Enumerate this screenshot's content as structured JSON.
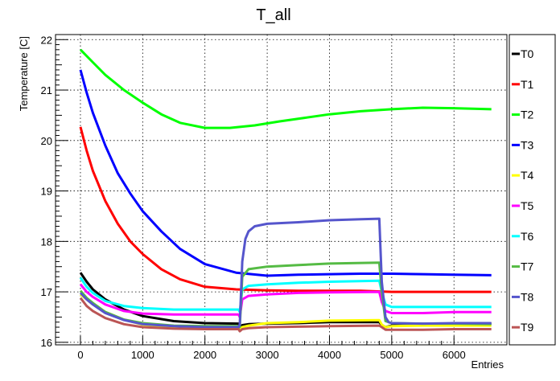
{
  "chart_data": {
    "type": "line",
    "title": "T_all",
    "xlabel": "Entries",
    "ylabel": "Temperature [C]",
    "xlim": [
      -400,
      6850
    ],
    "ylim": [
      15.95,
      22.1
    ],
    "grid": true,
    "legend_position": "right",
    "xticks": [
      0,
      1000,
      2000,
      3000,
      4000,
      5000,
      6000
    ],
    "xtick_labels": [
      "0",
      "1000",
      "2000",
      "3000",
      "4000",
      "5000",
      "6000"
    ],
    "yticks": [
      16,
      17,
      18,
      19,
      20,
      21,
      22
    ],
    "ytick_labels": [
      "16",
      "17",
      "18",
      "19",
      "20",
      "21",
      "22"
    ],
    "series": [
      {
        "name": "T0",
        "color": "#000000",
        "x": [
          0,
          100,
          200,
          400,
          700,
          1000,
          1500,
          2000,
          2540,
          2560,
          2600,
          2700,
          3000,
          3500,
          4000,
          4800,
          4840,
          4900,
          5000,
          5500,
          6000,
          6600
        ],
        "y": [
          17.38,
          17.2,
          17.05,
          16.85,
          16.65,
          16.52,
          16.42,
          16.38,
          16.37,
          16.3,
          16.34,
          16.36,
          16.37,
          16.38,
          16.4,
          16.4,
          16.34,
          16.3,
          16.33,
          16.35,
          16.36,
          16.37
        ]
      },
      {
        "name": "T1",
        "color": "#ff0000",
        "x": [
          0,
          100,
          200,
          400,
          600,
          800,
          1000,
          1300,
          1600,
          2000,
          2500,
          3000,
          3500,
          4000,
          4500,
          5000,
          5500,
          6000,
          6600
        ],
        "y": [
          20.27,
          19.8,
          19.4,
          18.8,
          18.35,
          18.0,
          17.75,
          17.45,
          17.25,
          17.1,
          17.05,
          17.03,
          17.02,
          17.02,
          17.02,
          17.0,
          17.0,
          17.0,
          17.0
        ]
      },
      {
        "name": "T2",
        "color": "#00ff00",
        "x": [
          0,
          200,
          400,
          700,
          1000,
          1300,
          1600,
          2000,
          2400,
          2800,
          3200,
          3600,
          4000,
          4500,
          5000,
          5500,
          6000,
          6600
        ],
        "y": [
          21.8,
          21.55,
          21.3,
          21.0,
          20.75,
          20.52,
          20.35,
          20.25,
          20.25,
          20.3,
          20.38,
          20.45,
          20.52,
          20.58,
          20.62,
          20.65,
          20.64,
          20.62
        ]
      },
      {
        "name": "T3",
        "color": "#0000ff",
        "x": [
          0,
          100,
          200,
          400,
          600,
          800,
          1000,
          1300,
          1600,
          2000,
          2500,
          3000,
          3500,
          4000,
          4500,
          5000,
          5500,
          6000,
          6600
        ],
        "y": [
          21.4,
          20.95,
          20.55,
          19.9,
          19.35,
          18.95,
          18.6,
          18.2,
          17.85,
          17.55,
          17.38,
          17.32,
          17.34,
          17.35,
          17.36,
          17.36,
          17.35,
          17.34,
          17.33
        ]
      },
      {
        "name": "T4",
        "color": "#ffff00",
        "x": [
          0,
          100,
          200,
          400,
          700,
          1000,
          1500,
          2000,
          2540,
          2560,
          2600,
          2700,
          3000,
          3500,
          4000,
          4800,
          4840,
          4900,
          5000,
          5500,
          6000,
          6600
        ],
        "y": [
          16.95,
          16.85,
          16.75,
          16.6,
          16.45,
          16.35,
          16.3,
          16.3,
          16.3,
          16.26,
          16.3,
          16.33,
          16.38,
          16.4,
          16.43,
          16.44,
          16.35,
          16.3,
          16.32,
          16.33,
          16.33,
          16.33
        ]
      },
      {
        "name": "T5",
        "color": "#ff00ff",
        "x": [
          0,
          100,
          200,
          400,
          700,
          1000,
          1500,
          2000,
          2540,
          2560,
          2600,
          2700,
          3000,
          3500,
          4000,
          4800,
          4840,
          4900,
          5000,
          5500,
          6000,
          6600
        ],
        "y": [
          17.15,
          17.0,
          16.9,
          16.75,
          16.62,
          16.57,
          16.55,
          16.55,
          16.55,
          16.5,
          16.85,
          16.92,
          16.95,
          16.98,
          16.99,
          17.0,
          16.8,
          16.62,
          16.58,
          16.58,
          16.6,
          16.6
        ]
      },
      {
        "name": "T6",
        "color": "#00ffff",
        "x": [
          0,
          100,
          200,
          400,
          700,
          1000,
          1500,
          2000,
          2540,
          2560,
          2600,
          2700,
          3000,
          3500,
          4000,
          4800,
          4840,
          4900,
          5000,
          5500,
          6000,
          6600
        ],
        "y": [
          17.28,
          17.1,
          16.98,
          16.82,
          16.72,
          16.68,
          16.65,
          16.65,
          16.65,
          16.6,
          17.05,
          17.12,
          17.15,
          17.18,
          17.2,
          17.22,
          17.0,
          16.75,
          16.7,
          16.7,
          16.7,
          16.7
        ]
      },
      {
        "name": "T7",
        "color": "#55bb44",
        "x": [
          0,
          100,
          200,
          400,
          700,
          1000,
          1500,
          2000,
          2540,
          2560,
          2600,
          2700,
          3000,
          3500,
          4000,
          4800,
          4840,
          4900,
          5000,
          5500,
          6000,
          6600
        ],
        "y": [
          17.02,
          16.88,
          16.78,
          16.6,
          16.45,
          16.38,
          16.33,
          16.32,
          16.32,
          16.3,
          17.3,
          17.45,
          17.5,
          17.53,
          17.56,
          17.58,
          17.0,
          16.42,
          16.38,
          16.37,
          16.37,
          16.36
        ]
      },
      {
        "name": "T8",
        "color": "#5555cc",
        "x": [
          0,
          100,
          200,
          400,
          700,
          1000,
          1500,
          2000,
          2540,
          2560,
          2600,
          2650,
          2700,
          2800,
          3000,
          3500,
          4000,
          4500,
          4800,
          4840,
          4900,
          4950,
          5000,
          5500,
          6000,
          6600
        ],
        "y": [
          16.98,
          16.85,
          16.75,
          16.58,
          16.44,
          16.36,
          16.32,
          16.3,
          16.3,
          16.35,
          17.6,
          18.05,
          18.2,
          18.3,
          18.35,
          18.38,
          18.42,
          18.44,
          18.45,
          17.2,
          16.5,
          16.4,
          16.38,
          16.37,
          16.38,
          16.38
        ]
      },
      {
        "name": "T9",
        "color": "#bb5555",
        "x": [
          0,
          100,
          200,
          400,
          700,
          1000,
          1500,
          2000,
          2540,
          2560,
          2600,
          2700,
          3000,
          3500,
          4000,
          4800,
          4840,
          4900,
          5000,
          5500,
          6000,
          6600
        ],
        "y": [
          16.88,
          16.72,
          16.62,
          16.48,
          16.36,
          16.3,
          16.27,
          16.26,
          16.26,
          16.22,
          16.26,
          16.28,
          16.3,
          16.31,
          16.32,
          16.33,
          16.3,
          16.25,
          16.25,
          16.25,
          16.26,
          16.26
        ]
      }
    ]
  }
}
